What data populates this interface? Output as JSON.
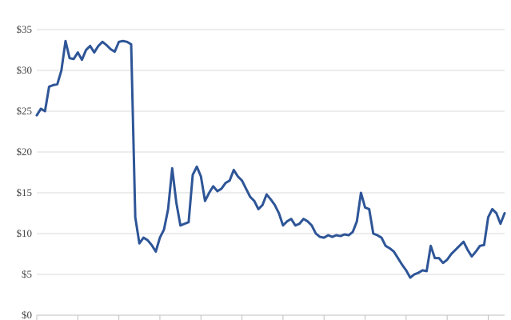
{
  "chart_data": {
    "type": "line",
    "title": "",
    "xlabel": "",
    "ylabel": "",
    "ylim": [
      0,
      35
    ],
    "xlim": [
      0,
      114
    ],
    "y_ticks": [
      0,
      5,
      10,
      15,
      20,
      25,
      30,
      35
    ],
    "y_tick_labels": [
      "$0",
      "$5",
      "$10",
      "$15",
      "$20",
      "$25",
      "$30",
      "$35"
    ],
    "x_tick_positions": [
      0,
      10,
      20,
      30,
      40,
      50,
      60,
      70,
      80,
      90,
      100,
      110
    ],
    "grid": true,
    "legend": "none",
    "colors": {
      "line": "#2e5597",
      "grid": "#d9d9d9",
      "axis": "#bfbfbf",
      "tick_text": "#444444"
    },
    "series": [
      {
        "values": [
          24.5,
          25.3,
          25.0,
          28.0,
          28.2,
          28.3,
          30.0,
          33.6,
          31.5,
          31.4,
          32.2,
          31.3,
          32.5,
          33.0,
          32.2,
          33.0,
          33.5,
          33.1,
          32.6,
          32.3,
          33.5,
          33.6,
          33.5,
          33.2,
          12.0,
          8.8,
          9.5,
          9.2,
          8.6,
          7.8,
          9.5,
          10.5,
          13.0,
          18.0,
          13.8,
          11.0,
          11.2,
          11.4,
          17.2,
          18.2,
          17.0,
          14.0,
          15.0,
          15.8,
          15.2,
          15.5,
          16.2,
          16.5,
          17.8,
          17.0,
          16.5,
          15.5,
          14.5,
          14.0,
          13.0,
          13.5,
          14.8,
          14.2,
          13.5,
          12.5,
          11.0,
          11.5,
          11.8,
          11.0,
          11.2,
          11.8,
          11.5,
          11.0,
          10.0,
          9.6,
          9.5,
          9.8,
          9.6,
          9.8,
          9.7,
          9.9,
          9.8,
          10.2,
          11.5,
          15.0,
          13.2,
          13.0,
          10.0,
          9.8,
          9.5,
          8.5,
          8.2,
          7.8,
          7.0,
          6.2,
          5.5,
          4.6,
          5.0,
          5.2,
          5.5,
          5.4,
          8.5,
          7.0,
          7.0,
          6.4,
          6.8,
          7.5,
          8.0,
          8.5,
          9.0,
          8.0,
          7.2,
          7.8,
          8.5,
          8.6,
          12.0,
          13.0,
          12.5,
          11.2,
          12.5
        ]
      }
    ]
  }
}
